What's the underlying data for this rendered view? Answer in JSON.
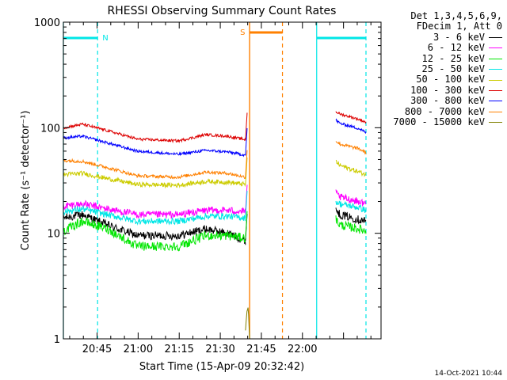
{
  "chart_data": {
    "type": "line",
    "title": "RHESSI Observing Summary Count Rates",
    "xlabel": "Start Time (15-Apr-09 20:32:42)",
    "ylabel": "Count Rate (s⁻¹ detector⁻¹)",
    "yscale": "log",
    "ylim": [
      1,
      1000
    ],
    "xlim_minutes": [
      0,
      116
    ],
    "yticks": [
      "1",
      "10",
      "100",
      "1000"
    ],
    "xticks": [
      {
        "label": "20:45",
        "minute": 12.3
      },
      {
        "label": "21:00",
        "minute": 27.3
      },
      {
        "label": "21:15",
        "minute": 42.3
      },
      {
        "label": "21:30",
        "minute": 57.3
      },
      {
        "label": "21:45",
        "minute": 72.3
      },
      {
        "label": "22:00",
        "minute": 87.3
      }
    ],
    "legend_header": [
      "Det 1,3,4,5,6,9,",
      "FDecim 1, Att 0"
    ],
    "series": [
      {
        "name": "3 - 6 keV",
        "color": "#000000",
        "noise": 0.09,
        "segments": [
          {
            "x": [
              0,
              7,
              16,
              27,
              42,
              52,
              60,
              66.5
            ],
            "y": [
              14,
              15,
              12,
              9.5,
              9.5,
              11,
              10,
              8.5
            ]
          },
          {
            "x": [
              99.5,
              101,
              108,
              110.5
            ],
            "y": [
              17,
              15,
              13.5,
              13
            ]
          }
        ]
      },
      {
        "name": "6 - 12 keV",
        "color": "#ff00ff",
        "noise": 0.08,
        "segments": [
          {
            "x": [
              0,
              7,
              16,
              27,
              42,
              52,
              60,
              66.5
            ],
            "y": [
              18,
              19,
              17,
              15,
              15,
              16.5,
              16.5,
              16
            ]
          },
          {
            "x": [
              99.5,
              101,
              108,
              110.5
            ],
            "y": [
              24,
              22,
              20,
              19
            ]
          }
        ]
      },
      {
        "name": "12 - 25 keV",
        "color": "#00e600",
        "noise": 0.1,
        "segments": [
          {
            "x": [
              0,
              7,
              16,
              27,
              42,
              52,
              60,
              66.5
            ],
            "y": [
              10.5,
              13,
              11,
              7.5,
              7.5,
              9.5,
              9.5,
              9
            ]
          },
          {
            "x": [
              99.5,
              101,
              108,
              110.5
            ],
            "y": [
              13.5,
              12,
              11,
              10.5
            ]
          }
        ]
      },
      {
        "name": "25 - 50 keV",
        "color": "#00e6e6",
        "noise": 0.07,
        "segments": [
          {
            "x": [
              0,
              7,
              16,
              27,
              42,
              52,
              60,
              66.5
            ],
            "y": [
              16,
              17,
              15,
              13,
              13,
              14.5,
              14.5,
              14
            ]
          },
          {
            "x": [
              99.5,
              101,
              108,
              110.5
            ],
            "y": [
              20,
              19,
              17.5,
              16.5
            ]
          }
        ]
      },
      {
        "name": "50 - 100 keV",
        "color": "#cccc00",
        "noise": 0.05,
        "segments": [
          {
            "x": [
              0,
              7,
              16,
              27,
              42,
              52,
              60,
              66.5
            ],
            "y": [
              36,
              37,
              33,
              29,
              28.5,
              31,
              30.5,
              29
            ]
          },
          {
            "x": [
              99.5,
              101,
              108,
              110.5
            ],
            "y": [
              48,
              44,
              38,
              36
            ]
          }
        ]
      },
      {
        "name": "100 - 300 keV",
        "color": "#dd0000",
        "noise": 0.03,
        "segments": [
          {
            "x": [
              0,
              7,
              16,
              27,
              42,
              52,
              60,
              66.5
            ],
            "y": [
              100,
              108,
              94,
              78,
              75,
              86,
              83,
              77
            ]
          },
          {
            "x": [
              99.5,
              101,
              108,
              110.5
            ],
            "y": [
              142,
              135,
              120,
              113
            ]
          }
        ]
      },
      {
        "name": "300 - 800 keV",
        "color": "#0000ff",
        "noise": 0.03,
        "segments": [
          {
            "x": [
              0,
              7,
              16,
              27,
              42,
              52,
              60,
              66.5
            ],
            "y": [
              80,
              83,
              72,
              60,
              56,
              61,
              59,
              55
            ]
          },
          {
            "x": [
              99.5,
              101,
              108,
              110.5
            ],
            "y": [
              118,
              110,
              98,
              90
            ]
          }
        ]
      },
      {
        "name": "800 - 7000 keV",
        "color": "#ff8000",
        "noise": 0.035,
        "segments": [
          {
            "x": [
              0,
              7,
              16,
              27,
              42,
              52,
              60,
              66.5
            ],
            "y": [
              49,
              48,
              42,
              35,
              34,
              38,
              37,
              34
            ]
          },
          {
            "x": [
              99.5,
              101,
              108,
              110.5
            ],
            "y": [
              75,
              70,
              63,
              58
            ]
          }
        ]
      },
      {
        "name": "7000 - 15000 keV",
        "color": "#808000",
        "noise": 0,
        "segments": [
          {
            "x": [
              66.5,
              67,
              67.5,
              68
            ],
            "y": [
              1.2,
              1.8,
              2.0,
              1.0
            ]
          }
        ]
      }
    ],
    "flags": {
      "saa_color": "#00e6e6",
      "saa_label": "N",
      "saa_bars": [
        [
          0,
          12.5
        ],
        [
          92.5,
          110.5
        ]
      ],
      "saa_lines": [
        0,
        12.5,
        92.5,
        110.5
      ],
      "saa_dashed": [
        12.5,
        110.5
      ],
      "flare_color": "#ff8000",
      "flare_label": "S",
      "flare_bar": [
        68,
        80
      ],
      "flare_lines_solid": [
        68
      ],
      "flare_lines_dashed": [
        80
      ]
    }
  },
  "footer": {
    "timestamp": "14-Oct-2021 10:44"
  }
}
